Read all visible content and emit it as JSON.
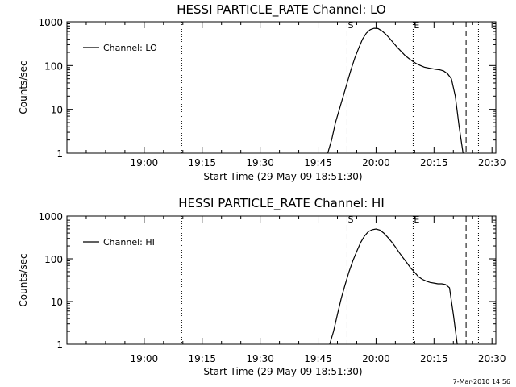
{
  "footer": {
    "stamp": "7-Mar-2010 14:56"
  },
  "chart_data": [
    {
      "type": "line",
      "title": "HESSI PARTICLE_RATE Channel: LO",
      "xlabel": "Start Time (29-May-09 18:51:30)",
      "ylabel": "Counts/sec",
      "yscale": "log",
      "xlim_min": [
        -11.5,
        99.5
      ],
      "ylim": [
        1,
        1000
      ],
      "xticks": [
        {
          "value": 8.5,
          "label": "19:00"
        },
        {
          "value": 23.5,
          "label": "19:15"
        },
        {
          "value": 38.5,
          "label": "19:30"
        },
        {
          "value": 53.5,
          "label": "19:45"
        },
        {
          "value": 68.5,
          "label": "20:00"
        },
        {
          "value": 83.5,
          "label": "20:15"
        },
        {
          "value": 98.5,
          "label": "20:30"
        }
      ],
      "yticks": [
        {
          "value": 1,
          "label": "1"
        },
        {
          "value": 10,
          "label": "10"
        },
        {
          "value": 100,
          "label": "100"
        },
        {
          "value": 1000,
          "label": "1000"
        }
      ],
      "legend": {
        "label": "Channel: LO",
        "position": "top-left"
      },
      "dotted_lines_min": [
        18.2,
        78.1,
        95.0
      ],
      "dashed_lines_min": [
        61.0,
        91.8
      ],
      "markers": [
        {
          "label": "S",
          "x_min": 61.0
        },
        {
          "label": "E",
          "x_min": 78.1
        }
      ],
      "series": [
        {
          "name": "Channel: LO",
          "x_min": [
            56.0,
            57.0,
            58.0,
            59.0,
            60.0,
            61.0,
            62.0,
            63.0,
            64.0,
            65.0,
            66.0,
            67.0,
            68.0,
            69.0,
            70.0,
            71.0,
            72.0,
            73.0,
            74.0,
            75.0,
            76.0,
            77.0,
            78.0,
            79.0,
            80.0,
            81.0,
            82.0,
            83.0,
            84.0,
            85.0,
            86.0,
            87.0,
            88.0,
            89.0,
            90.0,
            91.0
          ],
          "values": [
            1,
            2,
            5,
            10,
            20,
            40,
            80,
            150,
            250,
            400,
            550,
            660,
            710,
            700,
            620,
            520,
            420,
            330,
            260,
            210,
            170,
            145,
            125,
            110,
            100,
            92,
            88,
            85,
            82,
            80,
            75,
            65,
            50,
            20,
            4,
            1
          ]
        }
      ]
    },
    {
      "type": "line",
      "title": "HESSI PARTICLE_RATE Channel: HI",
      "xlabel": "Start Time (29-May-09 18:51:30)",
      "ylabel": "Counts/sec",
      "yscale": "log",
      "xlim_min": [
        -11.5,
        99.5
      ],
      "ylim": [
        1,
        1000
      ],
      "xticks": [
        {
          "value": 8.5,
          "label": "19:00"
        },
        {
          "value": 23.5,
          "label": "19:15"
        },
        {
          "value": 38.5,
          "label": "19:30"
        },
        {
          "value": 53.5,
          "label": "19:45"
        },
        {
          "value": 68.5,
          "label": "20:00"
        },
        {
          "value": 83.5,
          "label": "20:15"
        },
        {
          "value": 98.5,
          "label": "20:30"
        }
      ],
      "yticks": [
        {
          "value": 1,
          "label": "1"
        },
        {
          "value": 10,
          "label": "10"
        },
        {
          "value": 100,
          "label": "100"
        },
        {
          "value": 1000,
          "label": "1000"
        }
      ],
      "legend": {
        "label": "Channel: HI",
        "position": "top-left"
      },
      "dotted_lines_min": [
        18.2,
        78.1,
        95.0
      ],
      "dashed_lines_min": [
        61.0,
        91.8
      ],
      "markers": [
        {
          "label": "S",
          "x_min": 61.0
        },
        {
          "label": "E",
          "x_min": 78.1
        }
      ],
      "series": [
        {
          "name": "Channel: HI",
          "x_min": [
            56.5,
            57.5,
            58.5,
            59.5,
            60.5,
            61.5,
            62.5,
            63.5,
            64.5,
            65.5,
            66.5,
            67.5,
            68.5,
            69.5,
            70.5,
            71.5,
            72.5,
            73.5,
            74.5,
            75.5,
            76.5,
            77.5,
            78.5,
            79.5,
            80.5,
            81.5,
            82.5,
            83.5,
            84.5,
            85.5,
            86.5,
            87.5,
            88.5,
            89.5
          ],
          "values": [
            1,
            2,
            5,
            12,
            25,
            50,
            90,
            150,
            240,
            340,
            430,
            480,
            500,
            470,
            400,
            320,
            250,
            190,
            140,
            105,
            80,
            60,
            48,
            38,
            33,
            30,
            28,
            27,
            26,
            26,
            25,
            21,
            5,
            1
          ]
        }
      ]
    }
  ]
}
